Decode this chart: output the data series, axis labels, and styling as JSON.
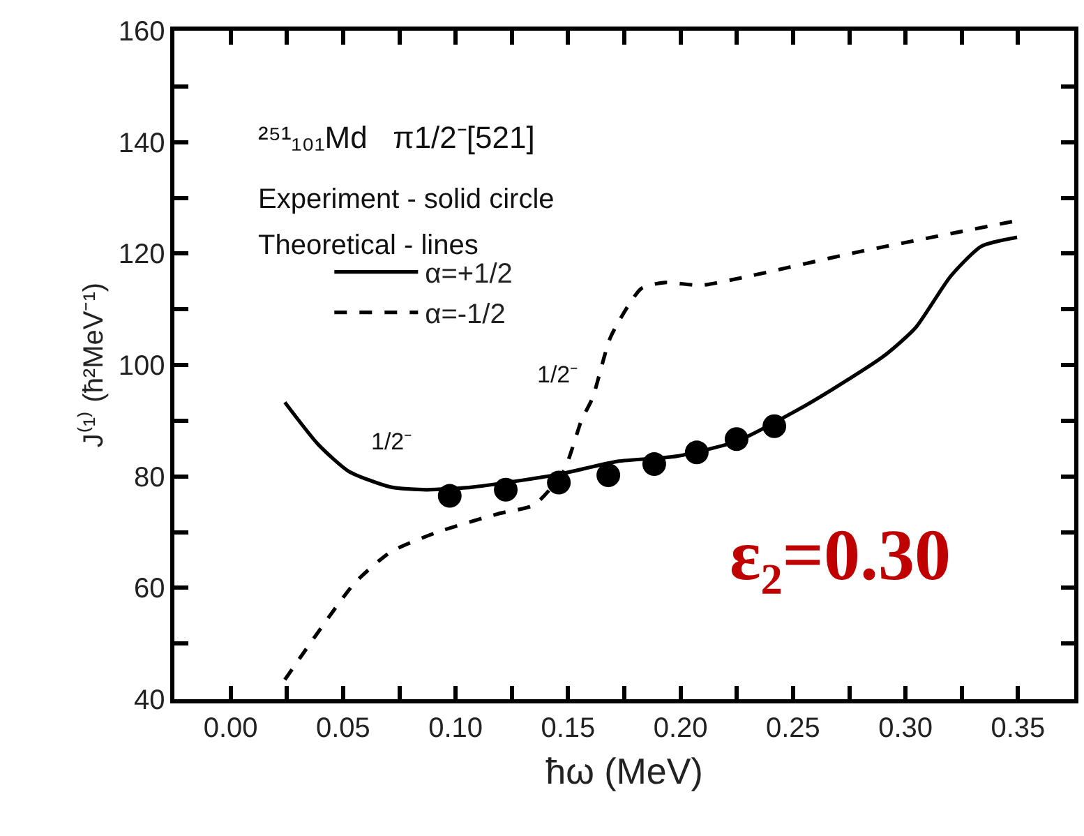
{
  "chart_data": {
    "type": "line",
    "xlabel": "ħω (MeV)",
    "ylabel": "J⁽¹⁾ (ħ²MeV⁻¹)",
    "xlim": [
      -0.025,
      0.375
    ],
    "xticks": [
      {
        "value": 0.0,
        "label": "0.00"
      },
      {
        "value": 0.025,
        "label": null
      },
      {
        "value": 0.05,
        "label": "0.05"
      },
      {
        "value": 0.075,
        "label": null
      },
      {
        "value": 0.1,
        "label": "0.10"
      },
      {
        "value": 0.125,
        "label": null
      },
      {
        "value": 0.15,
        "label": "0.15"
      },
      {
        "value": 0.175,
        "label": null
      },
      {
        "value": 0.2,
        "label": "0.20"
      },
      {
        "value": 0.225,
        "label": null
      },
      {
        "value": 0.25,
        "label": "0.25"
      },
      {
        "value": 0.275,
        "label": null
      },
      {
        "value": 0.3,
        "label": "0.30"
      },
      {
        "value": 0.325,
        "label": null
      },
      {
        "value": 0.35,
        "label": "0.35"
      }
    ],
    "ylim": [
      40,
      160
    ],
    "yticks": [
      40,
      {
        "value": 50,
        "label": null
      },
      60,
      {
        "value": 70,
        "label": null
      },
      80,
      {
        "value": 90,
        "label": null
      },
      100,
      {
        "value": 110,
        "label": null
      },
      120,
      {
        "value": 130,
        "label": null
      },
      140,
      {
        "value": 150,
        "label": null
      },
      160
    ],
    "legend": "top left",
    "series": [
      {
        "type": "scatter",
        "marker": "circle",
        "color": "#000000",
        "x": [
          0.0974,
          0.1223,
          0.1459,
          0.1679,
          0.1883,
          0.2072,
          0.2249,
          0.2417
        ],
        "values": [
          76.5,
          77.6,
          78.9,
          80.2,
          82.2,
          84.3,
          86.7,
          89.0
        ]
      },
      {
        "name": "α=+1/2",
        "line_style": "solid",
        "color": "#000000",
        "x": [
          0.0241,
          0.039,
          0.0525,
          0.071,
          0.087,
          0.108,
          0.145,
          0.172,
          0.198,
          0.225,
          0.251,
          0.267,
          0.291,
          0.3045,
          0.32,
          0.3337,
          0.3496
        ],
        "values": [
          93.3,
          85.7,
          80.9,
          78.1,
          77.6,
          78.1,
          80.3,
          82.7,
          83.6,
          86.3,
          91.7,
          95.5,
          101.8,
          106.7,
          115.9,
          121.3,
          122.9
        ]
      },
      {
        "name": "α=-1/2",
        "line_style": "dashed",
        "color": "#000000",
        "x": [
          0.0241,
          0.039,
          0.055,
          0.071,
          0.092,
          0.119,
          0.135,
          0.148,
          0.156,
          0.161,
          0.169,
          0.1825,
          0.193,
          0.209,
          0.23,
          0.278,
          0.3496
        ],
        "values": [
          43.5,
          52.1,
          60.8,
          66.4,
          70.0,
          73.3,
          74.9,
          80.9,
          90.1,
          94.2,
          105.1,
          113.7,
          114.8,
          114.3,
          115.9,
          120.2,
          125.9
        ]
      }
    ],
    "annotations": [
      "²⁵¹₁₀₁Md   π1/2⁻[521]",
      "Experiment - solid circle",
      "Theoretical - lines",
      "1/2⁻",
      "1/2⁻",
      "ε₂=0.30"
    ]
  }
}
